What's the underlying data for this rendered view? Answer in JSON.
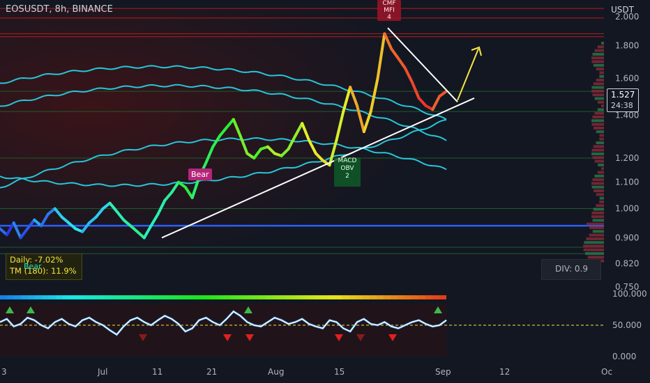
{
  "header": {
    "symbol": "EOSUSDT, 8h, BINANCE",
    "currency": "USDT"
  },
  "price_badge": {
    "price": "1.527",
    "countdown": "24:38"
  },
  "stats": {
    "daily_label": "Daily:",
    "daily_value": "-7.02%",
    "tm_label": "TM (180):",
    "tm_value": "11.9%"
  },
  "div": {
    "label": "DIV: 0.9"
  },
  "signals": {
    "bear_label": "Bear",
    "bear_small": "Bear",
    "macd_line1": "MACD",
    "macd_line2": "OBV",
    "macd_line3": "2",
    "mfi_line1": "CMF",
    "mfi_line2": "MFI",
    "mfi_line3": "4"
  },
  "colors": {
    "background": "#131722",
    "bands": "#26c6da",
    "trendline": "#ffffff",
    "projection": "#f5e642",
    "support_line": "#2962ff",
    "resistance": "#b71c1c"
  },
  "chart_data": [
    {
      "type": "line",
      "title": "EOSUSDT, 8h, BINANCE",
      "x_ticks": [
        "3",
        "Jul",
        "11",
        "21",
        "Aug",
        "15",
        "Sep",
        "12",
        "Oc"
      ],
      "y_ticks": [
        "2.000",
        "1.800",
        "1.600",
        "1.400",
        "1.200",
        "1.100",
        "1.000",
        "0.900",
        "0.820",
        "0.750"
      ],
      "ylim": [
        0.75,
        2.05
      ],
      "y_scale": "log",
      "series": [
        {
          "values": [
            0.93,
            0.91,
            0.95,
            0.9,
            0.93,
            0.96,
            0.94,
            0.98,
            1.0,
            0.97,
            0.95,
            0.93,
            0.92,
            0.95,
            0.97,
            1.0,
            1.02,
            0.99,
            0.96,
            0.94,
            0.92,
            0.9,
            0.94,
            0.98,
            1.03,
            1.06,
            1.1,
            1.08,
            1.04,
            1.12,
            1.18,
            1.25,
            1.3,
            1.34,
            1.38,
            1.3,
            1.22,
            1.2,
            1.24,
            1.25,
            1.22,
            1.21,
            1.24,
            1.3,
            1.36,
            1.28,
            1.22,
            1.19,
            1.17,
            1.28,
            1.42,
            1.55,
            1.45,
            1.32,
            1.42,
            1.6,
            1.88,
            1.78,
            1.72,
            1.66,
            1.58,
            1.49,
            1.45,
            1.43,
            1.5,
            1.527
          ]
        }
      ],
      "horizontal_levels": [
        2.06,
        1.99,
        1.88,
        1.86,
        1.527,
        1.42,
        1.2,
        1.0,
        0.94,
        0.87,
        0.85
      ],
      "trendline_support": [
        [
          0.9,
          1.49
        ]
      ],
      "trendline_resistance": [
        [
          1.92,
          1.47
        ]
      ]
    },
    {
      "type": "line",
      "title": "",
      "y_ticks": [
        "100.000",
        "50.000",
        "0.000"
      ],
      "ylim": [
        0,
        100
      ],
      "series": [
        {
          "values": [
            55,
            60,
            48,
            52,
            62,
            58,
            50,
            45,
            55,
            60,
            52,
            48,
            58,
            62,
            55,
            50,
            42,
            35,
            48,
            58,
            62,
            55,
            50,
            58,
            65,
            60,
            52,
            40,
            45,
            58,
            62,
            55,
            50,
            60,
            72,
            65,
            55,
            50,
            48,
            55,
            62,
            58,
            52,
            55,
            60,
            52,
            48,
            45,
            58,
            55,
            45,
            40,
            55,
            60,
            52,
            50,
            55,
            48,
            45,
            50,
            55,
            58,
            52,
            48,
            50,
            58
          ]
        }
      ],
      "dashed_level": 50
    }
  ]
}
